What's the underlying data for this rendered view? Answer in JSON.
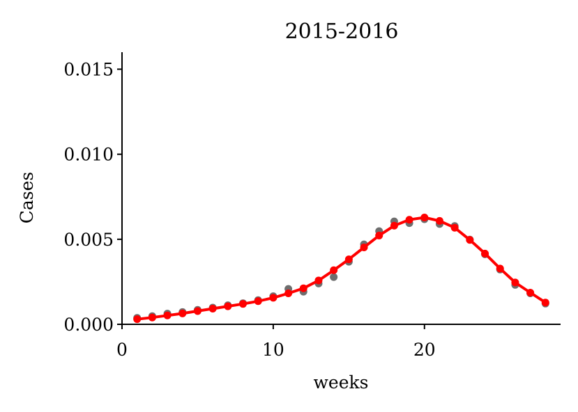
{
  "chart_data": {
    "type": "line",
    "title": "2015-2016",
    "xlabel": "weeks",
    "ylabel": "Cases",
    "xlim": [
      0,
      29
    ],
    "ylim": [
      0,
      0.016
    ],
    "xticks": [
      "0",
      "10",
      "20"
    ],
    "yticks": [
      "0.000",
      "0.005",
      "0.010",
      "0.015"
    ],
    "grid": false,
    "series": [
      {
        "style": "scatter",
        "color": "#555555",
        "x": [
          1,
          2,
          3,
          4,
          5,
          6,
          7,
          8,
          9,
          10,
          11,
          12,
          13,
          14,
          15,
          16,
          17,
          18,
          19,
          20,
          21,
          22,
          23,
          24,
          25,
          26,
          27,
          28
        ],
        "y": [
          0.00038,
          0.00048,
          0.00063,
          0.00072,
          0.00085,
          0.00098,
          0.00112,
          0.00124,
          0.00142,
          0.00165,
          0.00208,
          0.00192,
          0.0024,
          0.00278,
          0.00368,
          0.0047,
          0.00548,
          0.00605,
          0.00595,
          0.00618,
          0.0059,
          0.00578,
          0.00498,
          0.00412,
          0.00322,
          0.00232,
          0.00182,
          0.00122
        ]
      },
      {
        "style": "line-markers",
        "color": "#ff0000",
        "x": [
          1,
          2,
          3,
          4,
          5,
          6,
          7,
          8,
          9,
          10,
          11,
          12,
          13,
          14,
          15,
          16,
          17,
          18,
          19,
          20,
          21,
          22,
          23,
          24,
          25,
          26,
          27,
          28
        ],
        "y": [
          0.0003,
          0.0004,
          0.00052,
          0.00064,
          0.00078,
          0.00092,
          0.00106,
          0.0012,
          0.00136,
          0.00156,
          0.00182,
          0.00212,
          0.00258,
          0.00318,
          0.00382,
          0.00452,
          0.00522,
          0.0058,
          0.00615,
          0.00628,
          0.00608,
          0.00568,
          0.00496,
          0.00416,
          0.00328,
          0.00246,
          0.00186,
          0.00128
        ]
      }
    ]
  }
}
